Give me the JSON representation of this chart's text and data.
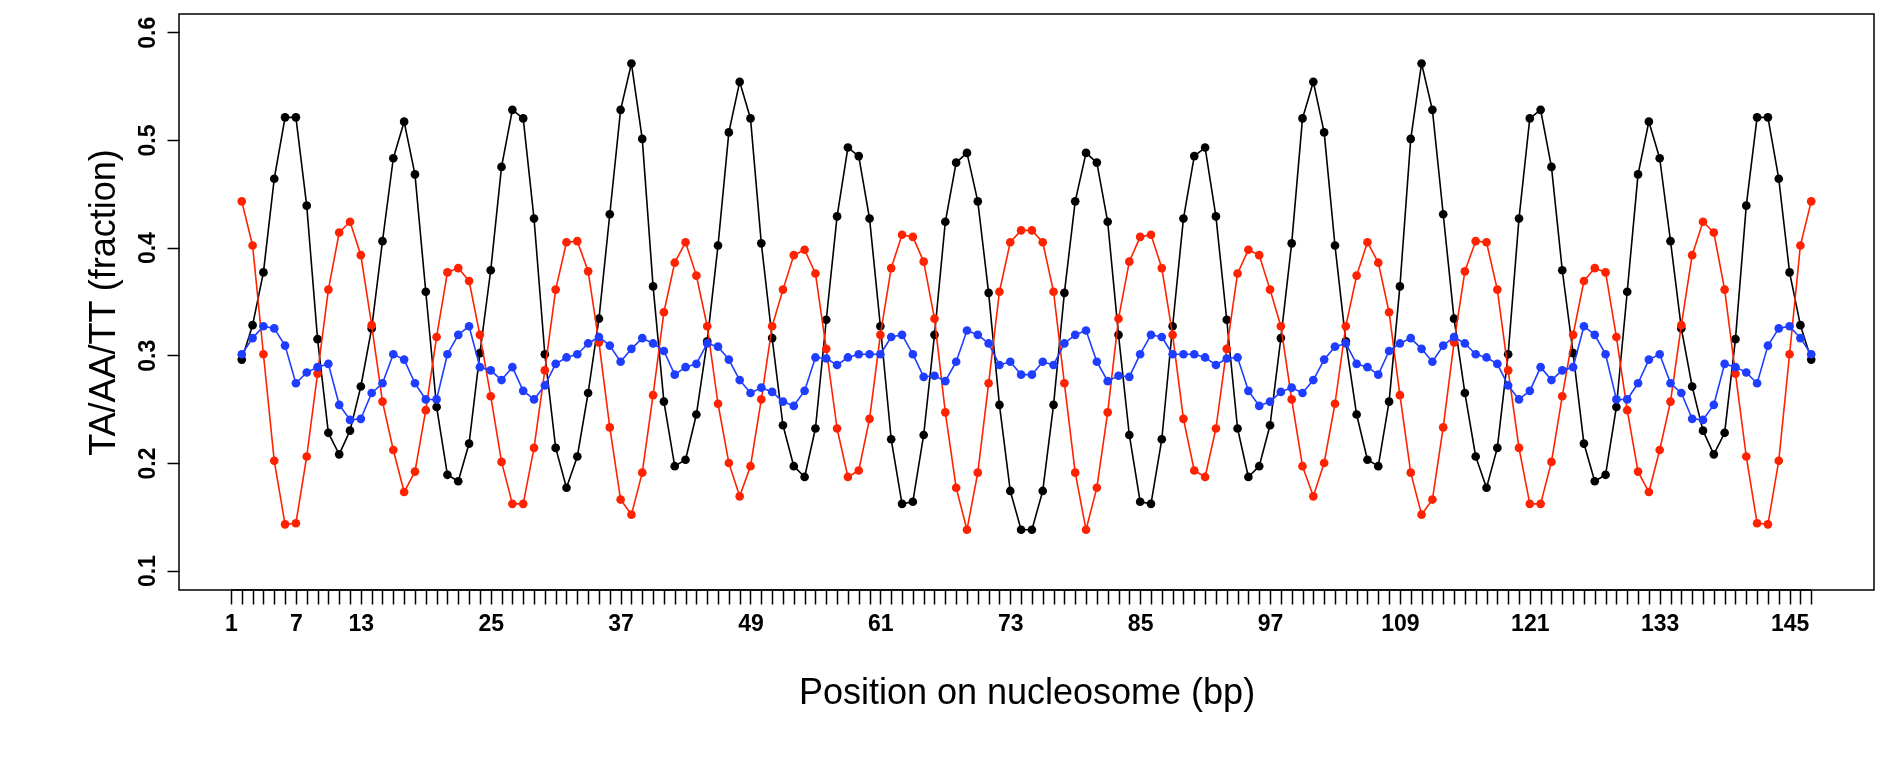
{
  "chart_data": {
    "type": "line",
    "xlabel": "Position on nucleosome (bp)",
    "ylabel": "TA/AA/TT (fraction)",
    "x": [
      2,
      3,
      4,
      5,
      6,
      7,
      8,
      9,
      10,
      11,
      12,
      13,
      14,
      15,
      16,
      17,
      18,
      19,
      20,
      21,
      22,
      23,
      24,
      25,
      26,
      27,
      28,
      29,
      30,
      31,
      32,
      33,
      34,
      35,
      36,
      37,
      38,
      39,
      40,
      41,
      42,
      43,
      44,
      45,
      46,
      47,
      48,
      49,
      50,
      51,
      52,
      53,
      54,
      55,
      56,
      57,
      58,
      59,
      60,
      61,
      62,
      63,
      64,
      65,
      66,
      67,
      68,
      69,
      70,
      71,
      72,
      73,
      74,
      75,
      76,
      77,
      78,
      79,
      80,
      81,
      82,
      83,
      84,
      85,
      86,
      87,
      88,
      89,
      90,
      91,
      92,
      93,
      94,
      95,
      96,
      97,
      98,
      99,
      100,
      101,
      102,
      103,
      104,
      105,
      106,
      107,
      108,
      109,
      110,
      111,
      112,
      113,
      114,
      115,
      116,
      117,
      118,
      119,
      120,
      121,
      122,
      123,
      124,
      125,
      126,
      127,
      128,
      129,
      130,
      131,
      132,
      133,
      134,
      135,
      136,
      137,
      138,
      139,
      140,
      141,
      142,
      143,
      144,
      145,
      146,
      147
    ],
    "series": [
      {
        "color": "#000000",
        "values": [
          0.296,
          0.328,
          0.377,
          0.464,
          0.521,
          0.521,
          0.439,
          0.315,
          0.228,
          0.208,
          0.23,
          0.271,
          0.325,
          0.406,
          0.483,
          0.517,
          0.468,
          0.359,
          0.252,
          0.189,
          0.183,
          0.218,
          0.302,
          0.379,
          0.475,
          0.528,
          0.52,
          0.427,
          0.301,
          0.214,
          0.177,
          0.206,
          0.265,
          0.334,
          0.431,
          0.528,
          0.571,
          0.501,
          0.364,
          0.257,
          0.197,
          0.203,
          0.245,
          0.313,
          0.402,
          0.507,
          0.554,
          0.52,
          0.404,
          0.316,
          0.235,
          0.197,
          0.187,
          0.232,
          0.333,
          0.429,
          0.493,
          0.485,
          0.427,
          0.327,
          0.222,
          0.162,
          0.164,
          0.226,
          0.319,
          0.424,
          0.479,
          0.488,
          0.443,
          0.358,
          0.254,
          0.174,
          0.138,
          0.138,
          0.174,
          0.254,
          0.358,
          0.443,
          0.488,
          0.479,
          0.424,
          0.319,
          0.226,
          0.164,
          0.162,
          0.222,
          0.327,
          0.427,
          0.485,
          0.493,
          0.429,
          0.333,
          0.232,
          0.187,
          0.197,
          0.235,
          0.316,
          0.404,
          0.52,
          0.554,
          0.507,
          0.402,
          0.313,
          0.245,
          0.203,
          0.197,
          0.257,
          0.364,
          0.501,
          0.571,
          0.528,
          0.431,
          0.334,
          0.265,
          0.206,
          0.177,
          0.214,
          0.301,
          0.427,
          0.52,
          0.528,
          0.475,
          0.379,
          0.302,
          0.218,
          0.183,
          0.189,
          0.252,
          0.359,
          0.468,
          0.517,
          0.483,
          0.406,
          0.325,
          0.271,
          0.23,
          0.208,
          0.228,
          0.315,
          0.439,
          0.521,
          0.521,
          0.464,
          0.377,
          0.328,
          0.296
        ]
      },
      {
        "color": "#ff2200",
        "values": [
          0.443,
          0.402,
          0.301,
          0.202,
          0.143,
          0.144,
          0.206,
          0.283,
          0.361,
          0.414,
          0.424,
          0.393,
          0.328,
          0.257,
          0.212,
          0.173,
          0.192,
          0.249,
          0.317,
          0.377,
          0.381,
          0.369,
          0.319,
          0.262,
          0.201,
          0.162,
          0.162,
          0.214,
          0.286,
          0.361,
          0.405,
          0.406,
          0.378,
          0.312,
          0.233,
          0.166,
          0.152,
          0.191,
          0.263,
          0.34,
          0.386,
          0.405,
          0.374,
          0.327,
          0.255,
          0.2,
          0.169,
          0.197,
          0.259,
          0.327,
          0.361,
          0.393,
          0.398,
          0.376,
          0.306,
          0.232,
          0.187,
          0.193,
          0.241,
          0.319,
          0.381,
          0.412,
          0.41,
          0.387,
          0.334,
          0.247,
          0.177,
          0.138,
          0.191,
          0.274,
          0.359,
          0.405,
          0.416,
          0.416,
          0.405,
          0.359,
          0.274,
          0.191,
          0.138,
          0.177,
          0.247,
          0.334,
          0.387,
          0.41,
          0.412,
          0.381,
          0.319,
          0.241,
          0.193,
          0.187,
          0.232,
          0.306,
          0.376,
          0.398,
          0.393,
          0.361,
          0.327,
          0.259,
          0.197,
          0.169,
          0.2,
          0.255,
          0.327,
          0.374,
          0.405,
          0.386,
          0.34,
          0.263,
          0.191,
          0.152,
          0.166,
          0.233,
          0.312,
          0.378,
          0.406,
          0.405,
          0.361,
          0.286,
          0.214,
          0.162,
          0.162,
          0.201,
          0.262,
          0.319,
          0.369,
          0.381,
          0.377,
          0.317,
          0.249,
          0.192,
          0.173,
          0.212,
          0.257,
          0.328,
          0.393,
          0.424,
          0.414,
          0.361,
          0.283,
          0.206,
          0.144,
          0.143,
          0.202,
          0.301,
          0.402,
          0.443
        ]
      },
      {
        "color": "#1f3dff",
        "values": [
          0.301,
          0.316,
          0.327,
          0.325,
          0.309,
          0.274,
          0.284,
          0.289,
          0.292,
          0.254,
          0.24,
          0.241,
          0.265,
          0.274,
          0.301,
          0.296,
          0.274,
          0.259,
          0.259,
          0.301,
          0.319,
          0.327,
          0.289,
          0.286,
          0.277,
          0.289,
          0.267,
          0.259,
          0.272,
          0.292,
          0.298,
          0.301,
          0.311,
          0.317,
          0.309,
          0.294,
          0.306,
          0.316,
          0.311,
          0.304,
          0.282,
          0.289,
          0.292,
          0.311,
          0.308,
          0.296,
          0.277,
          0.265,
          0.27,
          0.266,
          0.257,
          0.253,
          0.267,
          0.298,
          0.297,
          0.291,
          0.298,
          0.301,
          0.301,
          0.301,
          0.317,
          0.319,
          0.301,
          0.28,
          0.281,
          0.276,
          0.294,
          0.323,
          0.319,
          0.311,
          0.291,
          0.294,
          0.282,
          0.282,
          0.294,
          0.291,
          0.311,
          0.319,
          0.323,
          0.294,
          0.276,
          0.281,
          0.28,
          0.301,
          0.319,
          0.317,
          0.301,
          0.301,
          0.301,
          0.298,
          0.291,
          0.297,
          0.298,
          0.267,
          0.253,
          0.257,
          0.266,
          0.27,
          0.265,
          0.277,
          0.296,
          0.308,
          0.311,
          0.292,
          0.289,
          0.282,
          0.304,
          0.311,
          0.316,
          0.306,
          0.294,
          0.309,
          0.317,
          0.311,
          0.301,
          0.298,
          0.292,
          0.272,
          0.259,
          0.267,
          0.289,
          0.277,
          0.286,
          0.289,
          0.327,
          0.319,
          0.301,
          0.259,
          0.259,
          0.274,
          0.296,
          0.301,
          0.274,
          0.265,
          0.241,
          0.24,
          0.254,
          0.292,
          0.289,
          0.284,
          0.274,
          0.309,
          0.325,
          0.327,
          0.316,
          0.301
        ]
      }
    ],
    "xlim": [
      -3.8,
      152.8
    ],
    "ylim": [
      0.082,
      0.617
    ],
    "yticks": [
      0.1,
      0.2,
      0.3,
      0.4,
      0.5,
      0.6
    ],
    "xticks": [
      1,
      {
        "value": 2,
        "label": null
      },
      {
        "value": 3,
        "label": null
      },
      {
        "value": 4,
        "label": null
      },
      {
        "value": 5,
        "label": null
      },
      {
        "value": 6,
        "label": null
      },
      7,
      {
        "value": 8,
        "label": null
      },
      {
        "value": 9,
        "label": null
      },
      {
        "value": 10,
        "label": null
      },
      {
        "value": 11,
        "label": null
      },
      {
        "value": 12,
        "label": null
      },
      13,
      {
        "value": 14,
        "label": null
      },
      {
        "value": 15,
        "label": null
      },
      {
        "value": 16,
        "label": null
      },
      {
        "value": 17,
        "label": null
      },
      {
        "value": 18,
        "label": null
      },
      {
        "value": 19,
        "label": null
      },
      {
        "value": 20,
        "label": null
      },
      {
        "value": 21,
        "label": null
      },
      {
        "value": 22,
        "label": null
      },
      {
        "value": 23,
        "label": null
      },
      {
        "value": 24,
        "label": null
      },
      25,
      {
        "value": 26,
        "label": null
      },
      {
        "value": 27,
        "label": null
      },
      {
        "value": 28,
        "label": null
      },
      {
        "value": 29,
        "label": null
      },
      {
        "value": 30,
        "label": null
      },
      {
        "value": 31,
        "label": null
      },
      {
        "value": 32,
        "label": null
      },
      {
        "value": 33,
        "label": null
      },
      {
        "value": 34,
        "label": null
      },
      {
        "value": 35,
        "label": null
      },
      {
        "value": 36,
        "label": null
      },
      37,
      {
        "value": 38,
        "label": null
      },
      {
        "value": 39,
        "label": null
      },
      {
        "value": 40,
        "label": null
      },
      {
        "value": 41,
        "label": null
      },
      {
        "value": 42,
        "label": null
      },
      {
        "value": 43,
        "label": null
      },
      {
        "value": 44,
        "label": null
      },
      {
        "value": 45,
        "label": null
      },
      {
        "value": 46,
        "label": null
      },
      {
        "value": 47,
        "label": null
      },
      {
        "value": 48,
        "label": null
      },
      49,
      {
        "value": 50,
        "label": null
      },
      {
        "value": 51,
        "label": null
      },
      {
        "value": 52,
        "label": null
      },
      {
        "value": 53,
        "label": null
      },
      {
        "value": 54,
        "label": null
      },
      {
        "value": 55,
        "label": null
      },
      {
        "value": 56,
        "label": null
      },
      {
        "value": 57,
        "label": null
      },
      {
        "value": 58,
        "label": null
      },
      {
        "value": 59,
        "label": null
      },
      {
        "value": 60,
        "label": null
      },
      61,
      {
        "value": 62,
        "label": null
      },
      {
        "value": 63,
        "label": null
      },
      {
        "value": 64,
        "label": null
      },
      {
        "value": 65,
        "label": null
      },
      {
        "value": 66,
        "label": null
      },
      {
        "value": 67,
        "label": null
      },
      {
        "value": 68,
        "label": null
      },
      {
        "value": 69,
        "label": null
      },
      {
        "value": 70,
        "label": null
      },
      {
        "value": 71,
        "label": null
      },
      {
        "value": 72,
        "label": null
      },
      73,
      {
        "value": 74,
        "label": null
      },
      {
        "value": 75,
        "label": null
      },
      {
        "value": 76,
        "label": null
      },
      {
        "value": 77,
        "label": null
      },
      {
        "value": 78,
        "label": null
      },
      {
        "value": 79,
        "label": null
      },
      {
        "value": 80,
        "label": null
      },
      {
        "value": 81,
        "label": null
      },
      {
        "value": 82,
        "label": null
      },
      {
        "value": 83,
        "label": null
      },
      {
        "value": 84,
        "label": null
      },
      85,
      {
        "value": 86,
        "label": null
      },
      {
        "value": 87,
        "label": null
      },
      {
        "value": 88,
        "label": null
      },
      {
        "value": 89,
        "label": null
      },
      {
        "value": 90,
        "label": null
      },
      {
        "value": 91,
        "label": null
      },
      {
        "value": 92,
        "label": null
      },
      {
        "value": 93,
        "label": null
      },
      {
        "value": 94,
        "label": null
      },
      {
        "value": 95,
        "label": null
      },
      {
        "value": 96,
        "label": null
      },
      97,
      {
        "value": 98,
        "label": null
      },
      {
        "value": 99,
        "label": null
      },
      {
        "value": 100,
        "label": null
      },
      {
        "value": 101,
        "label": null
      },
      {
        "value": 102,
        "label": null
      },
      {
        "value": 103,
        "label": null
      },
      {
        "value": 104,
        "label": null
      },
      {
        "value": 105,
        "label": null
      },
      {
        "value": 106,
        "label": null
      },
      {
        "value": 107,
        "label": null
      },
      {
        "value": 108,
        "label": null
      },
      109,
      {
        "value": 110,
        "label": null
      },
      {
        "value": 111,
        "label": null
      },
      {
        "value": 112,
        "label": null
      },
      {
        "value": 113,
        "label": null
      },
      {
        "value": 114,
        "label": null
      },
      {
        "value": 115,
        "label": null
      },
      {
        "value": 116,
        "label": null
      },
      {
        "value": 117,
        "label": null
      },
      {
        "value": 118,
        "label": null
      },
      {
        "value": 119,
        "label": null
      },
      {
        "value": 120,
        "label": null
      },
      121,
      {
        "value": 122,
        "label": null
      },
      {
        "value": 123,
        "label": null
      },
      {
        "value": 124,
        "label": null
      },
      {
        "value": 125,
        "label": null
      },
      {
        "value": 126,
        "label": null
      },
      {
        "value": 127,
        "label": null
      },
      {
        "value": 128,
        "label": null
      },
      {
        "value": 129,
        "label": null
      },
      {
        "value": 130,
        "label": null
      },
      {
        "value": 131,
        "label": null
      },
      {
        "value": 132,
        "label": null
      },
      133,
      {
        "value": 134,
        "label": null
      },
      {
        "value": 135,
        "label": null
      },
      {
        "value": 136,
        "label": null
      },
      {
        "value": 137,
        "label": null
      },
      {
        "value": 138,
        "label": null
      },
      {
        "value": 139,
        "label": null
      },
      {
        "value": 140,
        "label": null
      },
      {
        "value": 141,
        "label": null
      },
      {
        "value": 142,
        "label": null
      },
      {
        "value": 143,
        "label": null
      },
      {
        "value": 144,
        "label": null
      },
      145,
      {
        "value": 146,
        "label": null
      },
      {
        "value": 147,
        "label": null
      }
    ],
    "marker": "circle",
    "line_style": "solid",
    "grid": false
  }
}
